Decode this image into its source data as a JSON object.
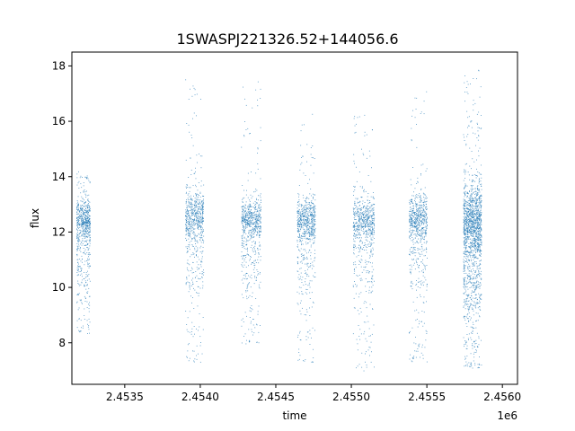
{
  "chart_data": {
    "type": "scatter",
    "title": "1SWASPJ221326.52+144056.6",
    "xlabel": "time",
    "ylabel": "flux",
    "x_offset_label": "1e6",
    "x_scale": 1000000,
    "xlim": [
      2453150,
      2456100
    ],
    "ylim": [
      6.5,
      18.5
    ],
    "x_ticks": [
      2453500,
      2454000,
      2454500,
      2455000,
      2455500,
      2456000
    ],
    "x_tick_labels": [
      "2.4535",
      "2.4540",
      "2.4545",
      "2.4550",
      "2.4555",
      "2.4560"
    ],
    "y_ticks": [
      8,
      10,
      12,
      14,
      16,
      18
    ],
    "y_tick_labels": [
      "8",
      "10",
      "12",
      "14",
      "16",
      "18"
    ],
    "grid": false,
    "marker_color": "#1f77b4",
    "series": [
      {
        "points_summary": [
          {
            "x_start": 2453180,
            "x_end": 2453270,
            "core_min": 11.6,
            "core_max": 13.2,
            "tail_min": 8.3,
            "tail_max": 14.2
          },
          {
            "x_start": 2453900,
            "x_end": 2454020,
            "core_min": 11.5,
            "core_max": 13.5,
            "tail_min": 7.2,
            "tail_max": 17.7
          },
          {
            "x_start": 2454270,
            "x_end": 2454400,
            "core_min": 11.6,
            "core_max": 13.3,
            "tail_min": 7.9,
            "tail_max": 17.5
          },
          {
            "x_start": 2454640,
            "x_end": 2454760,
            "core_min": 11.6,
            "core_max": 13.2,
            "tail_min": 7.3,
            "tail_max": 16.3
          },
          {
            "x_start": 2455010,
            "x_end": 2455150,
            "core_min": 11.5,
            "core_max": 13.3,
            "tail_min": 7.0,
            "tail_max": 16.5
          },
          {
            "x_start": 2455380,
            "x_end": 2455500,
            "core_min": 11.5,
            "core_max": 13.4,
            "tail_min": 7.3,
            "tail_max": 17.1
          },
          {
            "x_start": 2455740,
            "x_end": 2455860,
            "core_min": 10.8,
            "core_max": 13.8,
            "tail_min": 7.1,
            "tail_max": 17.9
          }
        ]
      }
    ]
  }
}
